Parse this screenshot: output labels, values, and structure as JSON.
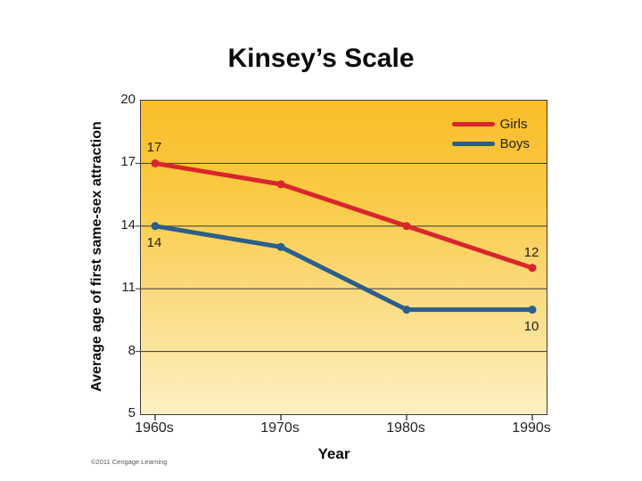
{
  "slide": {
    "title": "Kinsey’s Scale",
    "copyright": "©2011 Cengage Learning"
  },
  "chart_data": {
    "type": "line",
    "title": "Kinsey’s Scale",
    "categories": [
      "1960s",
      "1970s",
      "1980s",
      "1990s"
    ],
    "series": [
      {
        "name": "Girls",
        "color": "#d8262b",
        "values": [
          17,
          16,
          14,
          12
        ]
      },
      {
        "name": "Boys",
        "color": "#2a5e8c",
        "values": [
          14,
          13,
          10,
          10
        ]
      }
    ],
    "point_labels": [
      {
        "series": 0,
        "index": 0,
        "text": "17",
        "position": "above"
      },
      {
        "series": 0,
        "index": 3,
        "text": "12",
        "position": "above"
      },
      {
        "series": 1,
        "index": 0,
        "text": "14",
        "position": "below"
      },
      {
        "series": 1,
        "index": 3,
        "text": "10",
        "position": "below"
      }
    ],
    "xlabel": "Year",
    "ylabel": "Average age of first same-sex attraction",
    "ylim": [
      5,
      20
    ],
    "yticks": [
      20,
      17,
      14,
      11,
      8,
      5
    ],
    "grid": true,
    "legend_position": "top-right",
    "colors": {
      "grid": "#4b4741",
      "border": "#3e3a39",
      "tick_text": "#231f20"
    },
    "background_gradient": [
      "#f9bd28",
      "#fbca44",
      "#fbdb80",
      "#fdf0c3"
    ]
  }
}
